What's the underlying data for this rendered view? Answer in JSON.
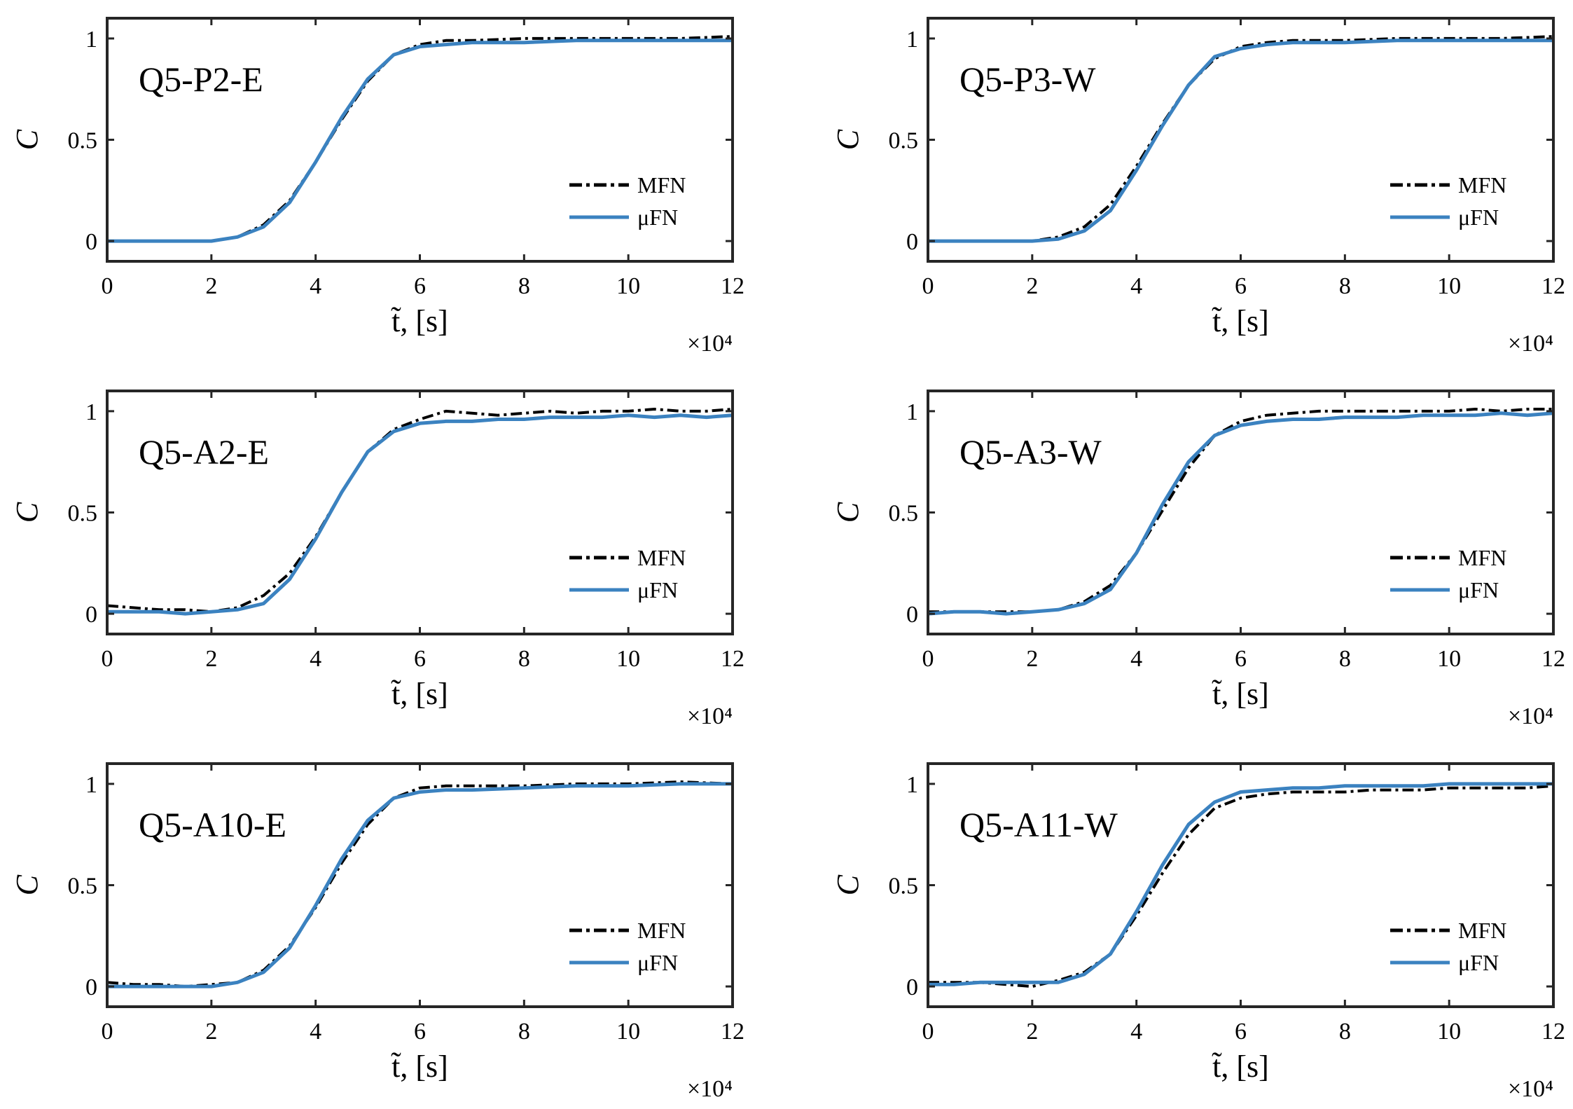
{
  "figure": {
    "mfn_color": "#000000",
    "ufn_color": "#3b82c0"
  },
  "chart_data": [
    {
      "type": "line",
      "title": "Q5-P2-E",
      "xlabel": "t̃, [s]",
      "ylabel": "C",
      "x_multiplier": "×10⁴",
      "xlim": [
        0,
        12
      ],
      "ylim": [
        -0.1,
        1.1
      ],
      "xticks": [
        0,
        2,
        4,
        6,
        8,
        10,
        12
      ],
      "xtick_labels": [
        "0",
        "2",
        "4",
        "6",
        "8",
        "10",
        "12"
      ],
      "yticks": [
        0,
        0.5,
        1
      ],
      "ytick_labels": [
        "0",
        "0.5",
        "1"
      ],
      "legend": [
        "MFN",
        "μFN"
      ],
      "series": [
        {
          "name": "MFN",
          "x": [
            0,
            1,
            2,
            2.5,
            3,
            3.5,
            4,
            4.5,
            5,
            5.5,
            6,
            6.5,
            7,
            8,
            9,
            10,
            11,
            12
          ],
          "values": [
            0,
            0,
            0,
            0.02,
            0.08,
            0.2,
            0.39,
            0.6,
            0.79,
            0.92,
            0.97,
            0.99,
            0.99,
            1,
            1,
            1,
            1,
            1.01
          ]
        },
        {
          "name": "μFN",
          "x": [
            0,
            1,
            2,
            2.5,
            3,
            3.5,
            4,
            4.5,
            5,
            5.5,
            6,
            6.5,
            7,
            8,
            9,
            10,
            11,
            12
          ],
          "values": [
            0,
            0,
            0,
            0.02,
            0.07,
            0.19,
            0.39,
            0.61,
            0.8,
            0.92,
            0.96,
            0.97,
            0.98,
            0.98,
            0.99,
            0.99,
            0.99,
            0.99
          ]
        }
      ]
    },
    {
      "type": "line",
      "title": "Q5-P3-W",
      "xlabel": "t̃, [s]",
      "ylabel": "C",
      "x_multiplier": "×10⁴",
      "xlim": [
        0,
        12
      ],
      "ylim": [
        -0.1,
        1.1
      ],
      "xticks": [
        0,
        2,
        4,
        6,
        8,
        10,
        12
      ],
      "xtick_labels": [
        "0",
        "2",
        "4",
        "6",
        "8",
        "10",
        "12"
      ],
      "yticks": [
        0,
        0.5,
        1
      ],
      "ytick_labels": [
        "0",
        "0.5",
        "1"
      ],
      "legend": [
        "MFN",
        "μFN"
      ],
      "series": [
        {
          "name": "MFN",
          "x": [
            0,
            1,
            2,
            2.5,
            3,
            3.5,
            4,
            4.5,
            5,
            5.5,
            6,
            6.5,
            7,
            8,
            9,
            10,
            11,
            12
          ],
          "values": [
            0,
            0,
            0,
            0.02,
            0.07,
            0.18,
            0.37,
            0.58,
            0.77,
            0.9,
            0.96,
            0.98,
            0.99,
            0.99,
            1,
            1,
            1,
            1.01
          ]
        },
        {
          "name": "μFN",
          "x": [
            0,
            1,
            2,
            2.5,
            3,
            3.5,
            4,
            4.5,
            5,
            5.5,
            6,
            6.5,
            7,
            8,
            9,
            10,
            11,
            12
          ],
          "values": [
            0,
            0,
            0,
            0.01,
            0.05,
            0.15,
            0.35,
            0.57,
            0.77,
            0.91,
            0.95,
            0.97,
            0.98,
            0.98,
            0.99,
            0.99,
            0.99,
            0.99
          ]
        }
      ]
    },
    {
      "type": "line",
      "title": "Q5-A2-E",
      "xlabel": "t̃, [s]",
      "ylabel": "C",
      "x_multiplier": "×10⁴",
      "xlim": [
        0,
        12
      ],
      "ylim": [
        -0.1,
        1.1
      ],
      "xticks": [
        0,
        2,
        4,
        6,
        8,
        10,
        12
      ],
      "xtick_labels": [
        "0",
        "2",
        "4",
        "6",
        "8",
        "10",
        "12"
      ],
      "yticks": [
        0,
        0.5,
        1
      ],
      "ytick_labels": [
        "0",
        "0.5",
        "1"
      ],
      "legend": [
        "MFN",
        "μFN"
      ],
      "series": [
        {
          "name": "MFN",
          "x": [
            0,
            0.5,
            1,
            1.5,
            2,
            2.5,
            3,
            3.5,
            4,
            4.5,
            5,
            5.5,
            6,
            6.5,
            7,
            7.5,
            8,
            8.5,
            9,
            9.5,
            10,
            10.5,
            11,
            11.5,
            12
          ],
          "values": [
            0.04,
            0.03,
            0.02,
            0.02,
            0.01,
            0.03,
            0.09,
            0.2,
            0.38,
            0.6,
            0.8,
            0.91,
            0.96,
            1,
            0.99,
            0.98,
            0.99,
            1,
            0.99,
            1,
            1,
            1.01,
            1,
            1,
            1.01
          ]
        },
        {
          "name": "μFN",
          "x": [
            0,
            0.5,
            1,
            1.5,
            2,
            2.5,
            3,
            3.5,
            4,
            4.5,
            5,
            5.5,
            6,
            6.5,
            7,
            7.5,
            8,
            8.5,
            9,
            9.5,
            10,
            10.5,
            11,
            11.5,
            12
          ],
          "values": [
            0.01,
            0.01,
            0.01,
            0,
            0.01,
            0.02,
            0.05,
            0.17,
            0.37,
            0.6,
            0.8,
            0.9,
            0.94,
            0.95,
            0.95,
            0.96,
            0.96,
            0.97,
            0.97,
            0.97,
            0.98,
            0.97,
            0.98,
            0.97,
            0.98
          ]
        }
      ]
    },
    {
      "type": "line",
      "title": "Q5-A3-W",
      "xlabel": "t̃, [s]",
      "ylabel": "C",
      "x_multiplier": "×10⁴",
      "xlim": [
        0,
        12
      ],
      "ylim": [
        -0.1,
        1.1
      ],
      "xticks": [
        0,
        2,
        4,
        6,
        8,
        10,
        12
      ],
      "xtick_labels": [
        "0",
        "2",
        "4",
        "6",
        "8",
        "10",
        "12"
      ],
      "yticks": [
        0,
        0.5,
        1
      ],
      "ytick_labels": [
        "0",
        "0.5",
        "1"
      ],
      "legend": [
        "MFN",
        "μFN"
      ],
      "series": [
        {
          "name": "MFN",
          "x": [
            0,
            0.5,
            1,
            1.5,
            2,
            2.5,
            3,
            3.5,
            4,
            4.5,
            5,
            5.5,
            6,
            6.5,
            7,
            7.5,
            8,
            8.5,
            9,
            9.5,
            10,
            10.5,
            11,
            11.5,
            12
          ],
          "values": [
            0.01,
            0.01,
            0.01,
            0.01,
            0.01,
            0.02,
            0.06,
            0.14,
            0.3,
            0.51,
            0.72,
            0.88,
            0.95,
            0.98,
            0.99,
            1,
            1,
            1,
            1,
            1,
            1,
            1.01,
            1,
            1.01,
            1.01
          ]
        },
        {
          "name": "μFN",
          "x": [
            0,
            0.5,
            1,
            1.5,
            2,
            2.5,
            3,
            3.5,
            4,
            4.5,
            5,
            5.5,
            6,
            6.5,
            7,
            7.5,
            8,
            8.5,
            9,
            9.5,
            10,
            10.5,
            11,
            11.5,
            12
          ],
          "values": [
            0,
            0.01,
            0.01,
            0,
            0.01,
            0.02,
            0.05,
            0.12,
            0.3,
            0.54,
            0.75,
            0.88,
            0.93,
            0.95,
            0.96,
            0.96,
            0.97,
            0.97,
            0.97,
            0.98,
            0.98,
            0.98,
            0.99,
            0.98,
            0.99
          ]
        }
      ]
    },
    {
      "type": "line",
      "title": "Q5-A10-E",
      "xlabel": "t̃, [s]",
      "ylabel": "C",
      "x_multiplier": "×10⁴",
      "xlim": [
        0,
        12
      ],
      "ylim": [
        -0.1,
        1.1
      ],
      "xticks": [
        0,
        2,
        4,
        6,
        8,
        10,
        12
      ],
      "xtick_labels": [
        "0",
        "2",
        "4",
        "6",
        "8",
        "10",
        "12"
      ],
      "yticks": [
        0,
        0.5,
        1
      ],
      "ytick_labels": [
        "0",
        "0.5",
        "1"
      ],
      "legend": [
        "MFN",
        "μFN"
      ],
      "series": [
        {
          "name": "MFN",
          "x": [
            0,
            0.5,
            1,
            1.5,
            2,
            2.5,
            3,
            3.5,
            4,
            4.5,
            5,
            5.5,
            6,
            6.5,
            7,
            8,
            9,
            10,
            11,
            12
          ],
          "values": [
            0.02,
            0.01,
            0.01,
            0,
            0.01,
            0.02,
            0.08,
            0.2,
            0.39,
            0.61,
            0.8,
            0.93,
            0.98,
            0.99,
            0.99,
            0.99,
            1,
            1,
            1.01,
            1
          ]
        },
        {
          "name": "μFN",
          "x": [
            0,
            0.5,
            1,
            1.5,
            2,
            2.5,
            3,
            3.5,
            4,
            4.5,
            5,
            5.5,
            6,
            6.5,
            7,
            8,
            9,
            10,
            11,
            12
          ],
          "values": [
            0,
            0,
            0,
            0,
            0,
            0.02,
            0.07,
            0.19,
            0.4,
            0.63,
            0.82,
            0.93,
            0.96,
            0.97,
            0.97,
            0.98,
            0.99,
            0.99,
            1,
            1
          ]
        }
      ]
    },
    {
      "type": "line",
      "title": "Q5-A11-W",
      "xlabel": "t̃, [s]",
      "ylabel": "C",
      "x_multiplier": "×10⁴",
      "xlim": [
        0,
        12
      ],
      "ylim": [
        -0.1,
        1.1
      ],
      "xticks": [
        0,
        2,
        4,
        6,
        8,
        10,
        12
      ],
      "xtick_labels": [
        "0",
        "2",
        "4",
        "6",
        "8",
        "10",
        "12"
      ],
      "yticks": [
        0,
        0.5,
        1
      ],
      "ytick_labels": [
        "0",
        "0.5",
        "1"
      ],
      "legend": [
        "MFN",
        "μFN"
      ],
      "series": [
        {
          "name": "MFN",
          "x": [
            0,
            0.5,
            1,
            1.5,
            2,
            2.5,
            3,
            3.5,
            4,
            4.5,
            5,
            5.5,
            6,
            6.5,
            7,
            7.5,
            8,
            8.5,
            9,
            9.5,
            10,
            10.5,
            11,
            11.5,
            12
          ],
          "values": [
            0.02,
            0.02,
            0.02,
            0.01,
            0,
            0.03,
            0.07,
            0.16,
            0.35,
            0.56,
            0.75,
            0.88,
            0.93,
            0.95,
            0.96,
            0.96,
            0.96,
            0.97,
            0.97,
            0.97,
            0.98,
            0.98,
            0.98,
            0.98,
            0.99
          ]
        },
        {
          "name": "μFN",
          "x": [
            0,
            0.5,
            1,
            1.5,
            2,
            2.5,
            3,
            3.5,
            4,
            4.5,
            5,
            5.5,
            6,
            6.5,
            7,
            7.5,
            8,
            8.5,
            9,
            9.5,
            10,
            10.5,
            11,
            11.5,
            12
          ],
          "values": [
            0.01,
            0.01,
            0.02,
            0.02,
            0.02,
            0.02,
            0.06,
            0.16,
            0.37,
            0.6,
            0.8,
            0.91,
            0.96,
            0.97,
            0.98,
            0.98,
            0.99,
            0.99,
            0.99,
            0.99,
            1,
            1,
            1,
            1,
            1
          ]
        }
      ]
    }
  ]
}
